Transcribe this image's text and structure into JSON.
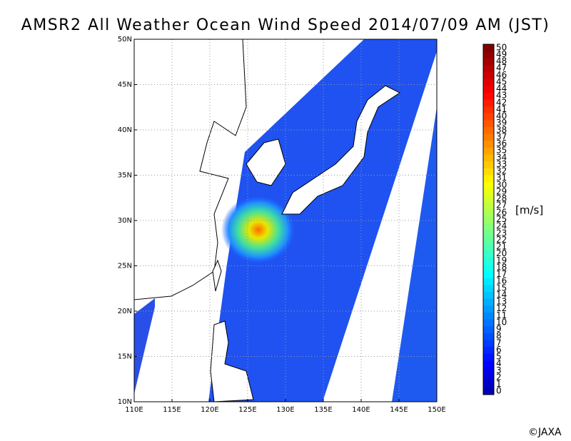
{
  "title": "AMSR2 All Weather Ocean Wind Speed 2014/07/09 AM (JST)",
  "map": {
    "lat_labels": [
      "50N",
      "45N",
      "40N",
      "35N",
      "30N",
      "25N",
      "20N",
      "15N",
      "10N"
    ],
    "lon_labels": [
      "110E",
      "115E",
      "120E",
      "125E",
      "130E",
      "135E",
      "140E",
      "145E",
      "150E"
    ]
  },
  "colorbar": {
    "labels": [
      0,
      1,
      2,
      3,
      4,
      5,
      6,
      7,
      8,
      9,
      10,
      11,
      12,
      13,
      14,
      15,
      16,
      17,
      18,
      19,
      20,
      21,
      22,
      23,
      24,
      25,
      26,
      27,
      28,
      29,
      30,
      31,
      32,
      33,
      34,
      35,
      36,
      37,
      38,
      39,
      40,
      41,
      42,
      43,
      44,
      45,
      46,
      47,
      48,
      49,
      50
    ],
    "unit": "[m/s]"
  },
  "credit": "©JAXA"
}
